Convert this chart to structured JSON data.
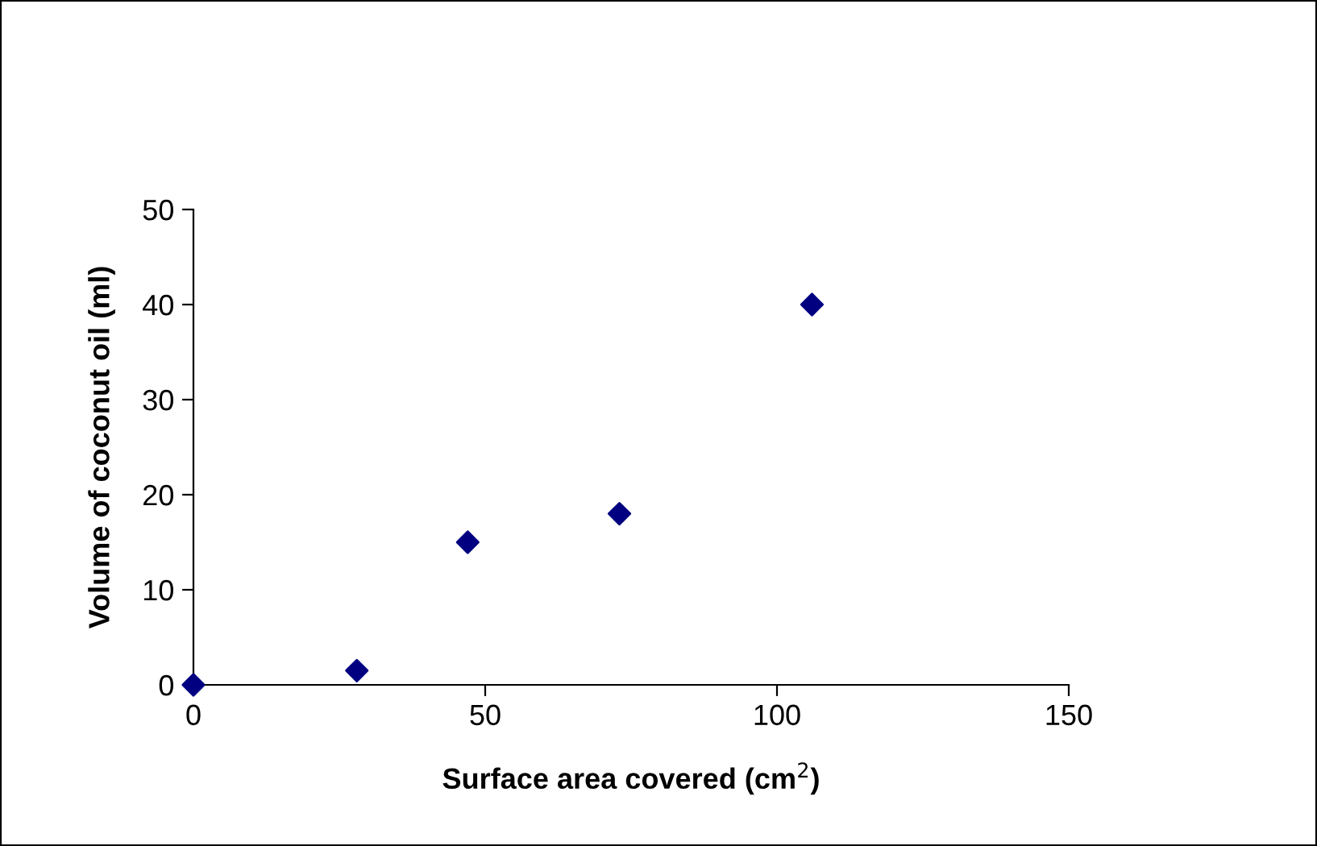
{
  "chart_data": {
    "type": "scatter",
    "xlabel": "Surface area covered (cm$^{2}$)",
    "ylabel": "Volume of coconut oil (ml)",
    "x": [
      0,
      28,
      47,
      73,
      106
    ],
    "series": [
      {
        "color": "#000080",
        "values": [
          0,
          1.5,
          15,
          18,
          40
        ]
      }
    ],
    "marker": "diamond",
    "xlim": [
      0,
      150
    ],
    "xticks": [
      0,
      50,
      100,
      150
    ],
    "ylim": [
      0,
      50
    ],
    "yticks": [
      0,
      10,
      20,
      30,
      40,
      50
    ],
    "grid": false,
    "legend": false
  }
}
